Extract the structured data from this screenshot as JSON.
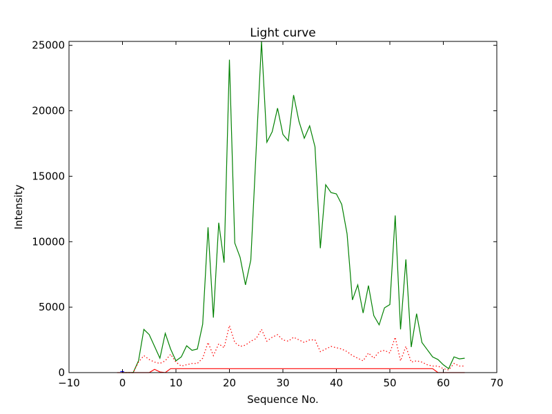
{
  "chart_data": {
    "type": "line",
    "title": "Light curve",
    "xlabel": "Sequence No.",
    "ylabel": "Intensity",
    "xlim": [
      -10,
      70
    ],
    "ylim": [
      0,
      25300
    ],
    "xticks": [
      -10,
      0,
      10,
      20,
      30,
      40,
      50,
      60,
      70
    ],
    "yticks": [
      0,
      5000,
      10000,
      15000,
      20000,
      25000
    ],
    "grid": false,
    "legend": "none",
    "series": [
      {
        "color": "#008000",
        "style": "solid",
        "x": [
          0,
          1,
          2,
          3,
          4,
          5,
          6,
          7,
          8,
          9,
          10,
          11,
          12,
          13,
          14,
          15,
          16,
          17,
          18,
          19,
          20,
          21,
          22,
          23,
          24,
          25,
          26,
          27,
          28,
          29,
          30,
          31,
          32,
          33,
          34,
          35,
          36,
          37,
          38,
          39,
          40,
          41,
          42,
          43,
          44,
          45,
          46,
          47,
          48,
          49,
          50,
          51,
          52,
          53,
          54,
          55,
          56,
          57,
          58,
          59,
          60,
          61,
          62,
          63,
          64
        ],
        "y": [
          0,
          0,
          0,
          900,
          3300,
          2900,
          2000,
          1100,
          3000,
          1800,
          900,
          1200,
          2050,
          1700,
          1800,
          3700,
          11100,
          4200,
          11450,
          8400,
          23900,
          9900,
          8800,
          6700,
          8600,
          17000,
          25300,
          17600,
          18400,
          20200,
          18200,
          17700,
          21200,
          19200,
          17900,
          18850,
          17250,
          9500,
          14350,
          13750,
          13650,
          12850,
          10600,
          5550,
          6700,
          4550,
          6650,
          4350,
          3650,
          4950,
          5200,
          12000,
          3300,
          8650,
          1950,
          4500,
          2300,
          1750,
          1200,
          1000,
          600,
          300,
          1200,
          1050,
          1100
        ]
      },
      {
        "color": "#ff0000",
        "style": "dotted",
        "x": [
          0,
          1,
          2,
          3,
          4,
          5,
          6,
          7,
          8,
          9,
          10,
          11,
          12,
          13,
          14,
          15,
          16,
          17,
          18,
          19,
          20,
          21,
          22,
          23,
          24,
          25,
          26,
          27,
          28,
          29,
          30,
          31,
          32,
          33,
          34,
          35,
          36,
          37,
          38,
          39,
          40,
          41,
          42,
          43,
          44,
          45,
          46,
          47,
          48,
          49,
          50,
          51,
          52,
          53,
          54,
          55,
          56,
          57,
          58,
          59,
          60,
          61,
          62,
          63,
          64
        ],
        "y": [
          0,
          0,
          0,
          800,
          1300,
          1000,
          800,
          700,
          900,
          1400,
          800,
          500,
          600,
          700,
          700,
          1100,
          2300,
          1300,
          2200,
          1900,
          3600,
          2300,
          2000,
          2100,
          2400,
          2600,
          3300,
          2400,
          2700,
          2900,
          2500,
          2400,
          2700,
          2500,
          2300,
          2500,
          2500,
          1600,
          1800,
          2000,
          1900,
          1800,
          1600,
          1300,
          1100,
          900,
          1500,
          1100,
          1600,
          1700,
          1500,
          2700,
          900,
          2000,
          800,
          900,
          800,
          600,
          500,
          500,
          300,
          200,
          700,
          500,
          500
        ]
      },
      {
        "color": "#ff0000",
        "style": "solid",
        "x": [
          -1,
          0,
          1,
          2,
          3,
          4,
          5,
          6,
          7,
          8,
          9,
          10,
          20,
          30,
          40,
          50,
          56,
          57,
          58,
          59,
          60,
          61,
          62,
          63,
          64
        ],
        "y": [
          0,
          0,
          0,
          0,
          0,
          0,
          0,
          250,
          50,
          0,
          300,
          300,
          300,
          300,
          300,
          300,
          300,
          300,
          300,
          0,
          0,
          0,
          0,
          0,
          0
        ]
      },
      {
        "color": "#0000ff",
        "style": "solid",
        "x": [
          -0.4,
          0.3
        ],
        "y": [
          80,
          80
        ]
      }
    ]
  }
}
